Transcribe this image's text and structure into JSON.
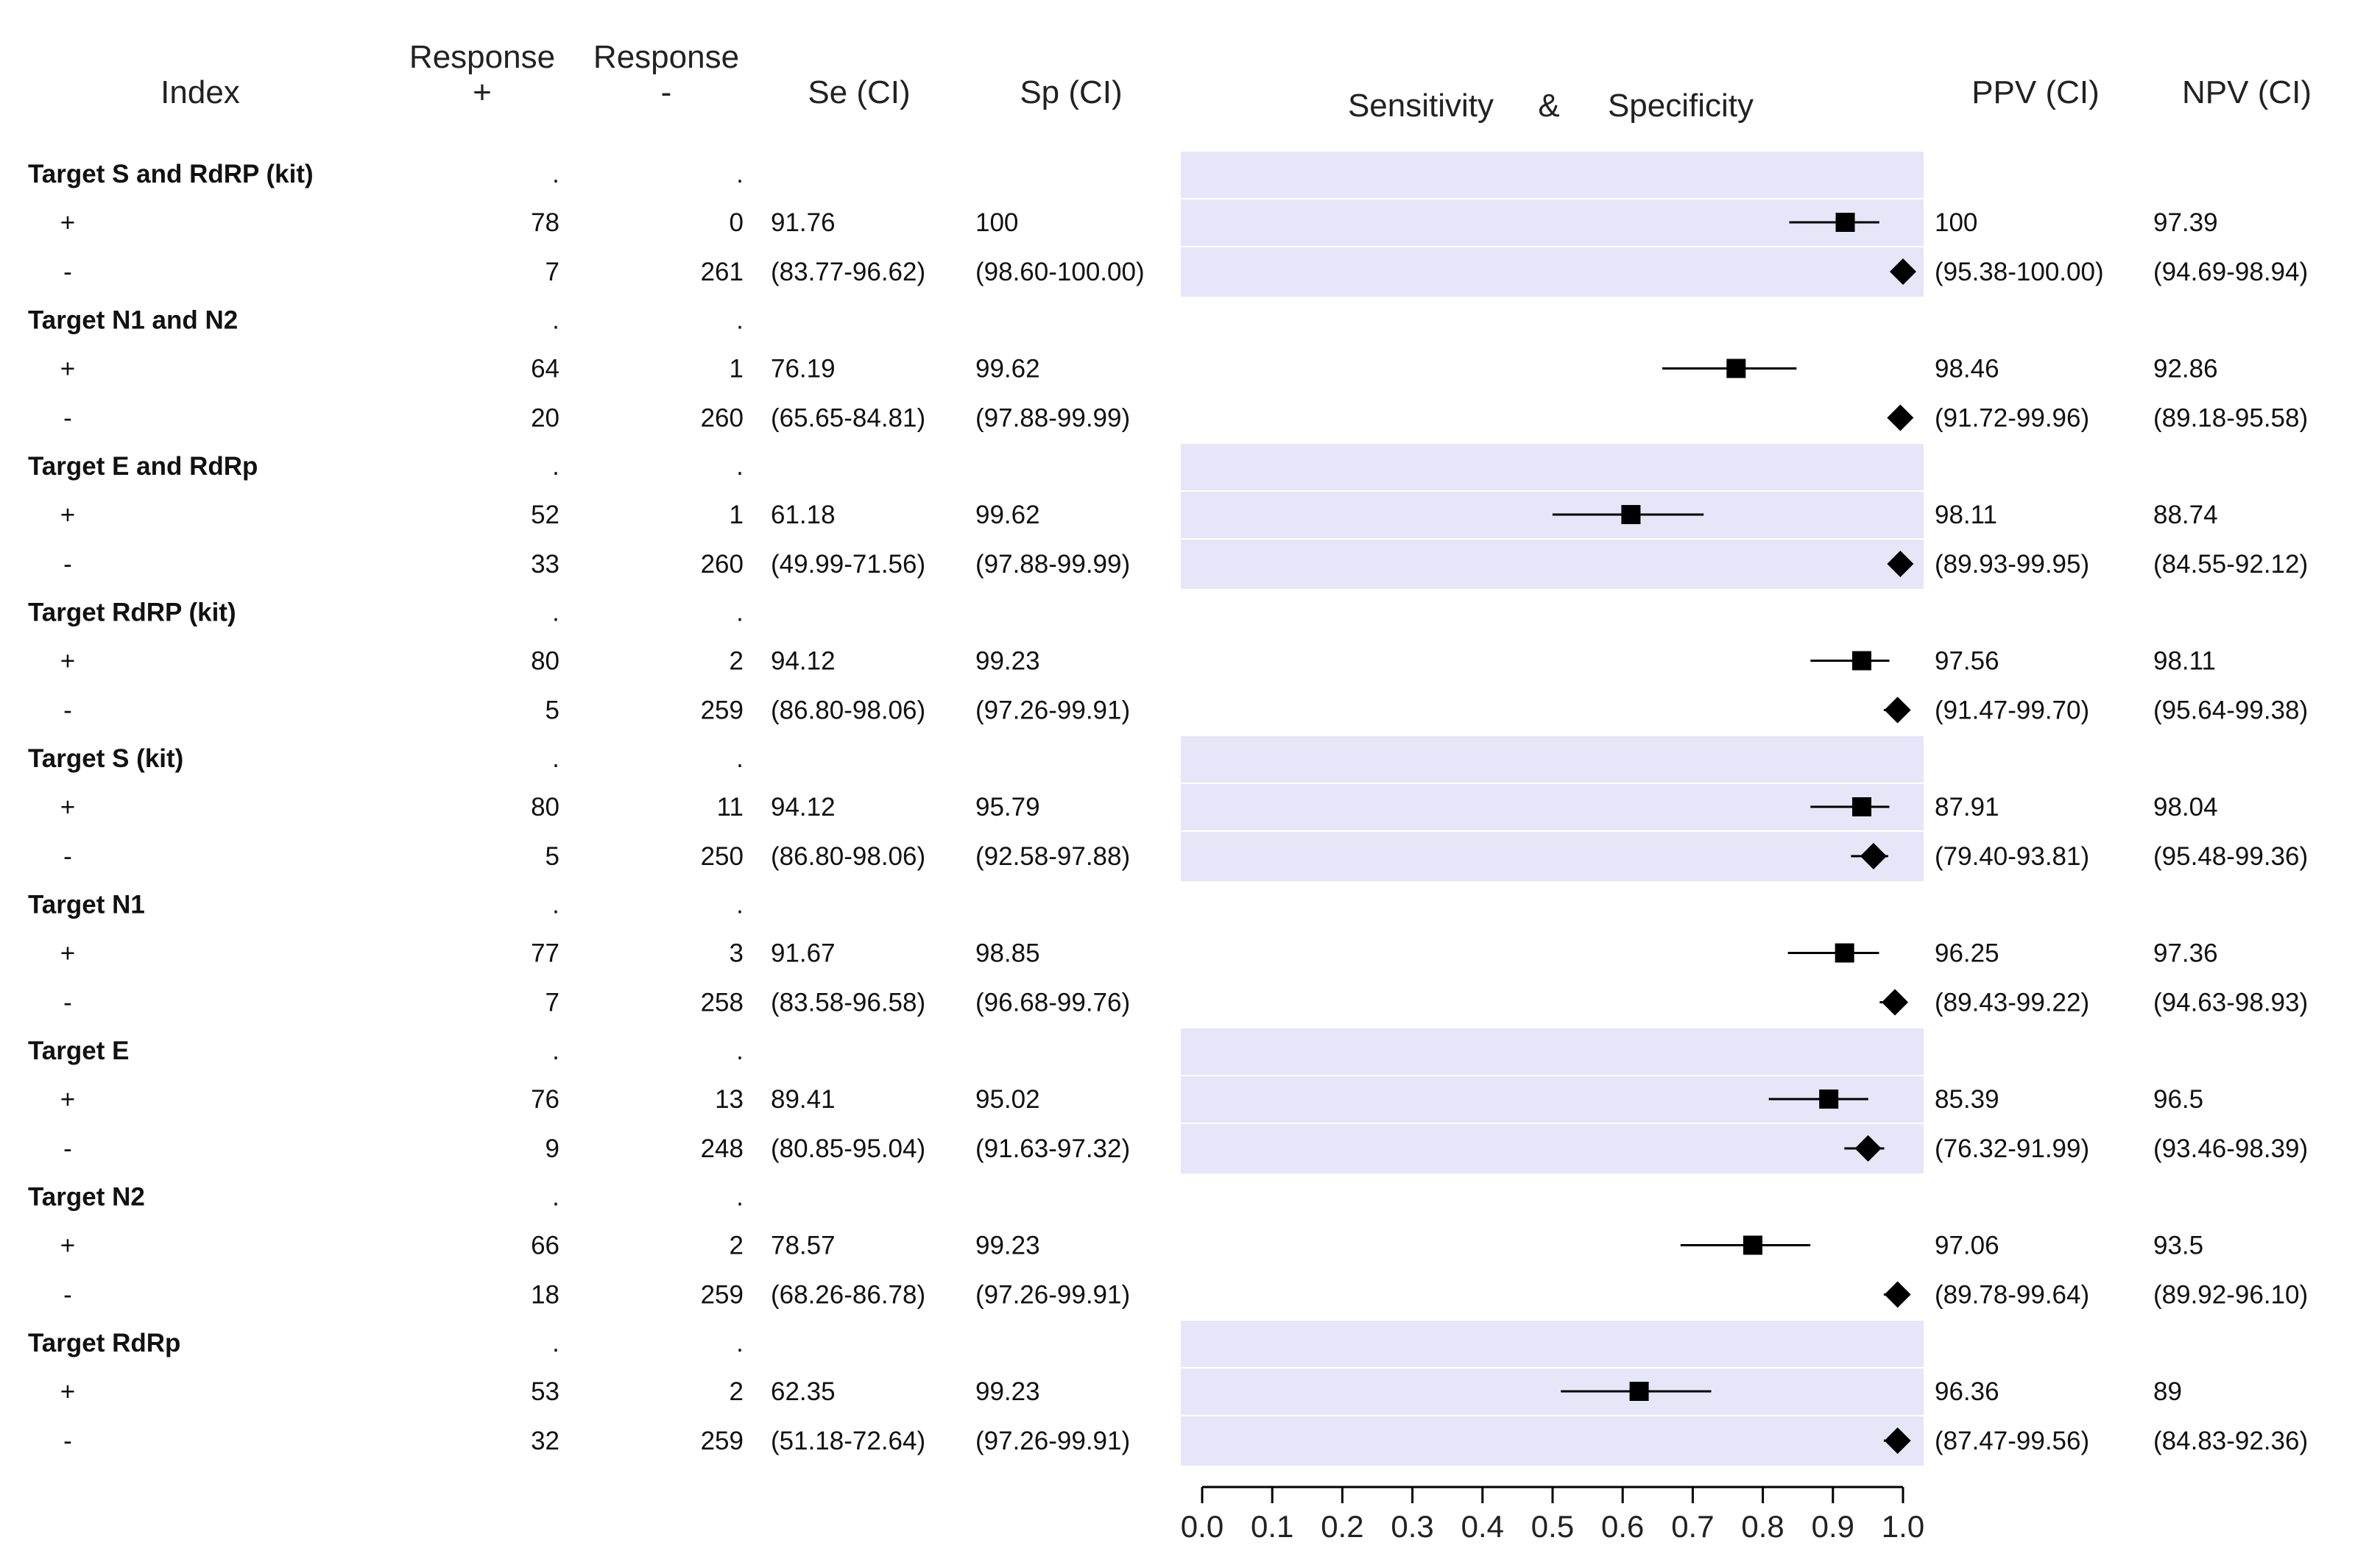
{
  "headers": {
    "index": "Index",
    "resp_pos_l1": "Response",
    "resp_pos_l2": "+",
    "resp_neg_l1": "Response",
    "resp_neg_l2": "-",
    "se": "Se (CI)",
    "sp": "Sp (CI)",
    "plot_title_left": "Sensitivity",
    "plot_title_amp": "&",
    "plot_title_right": "Specificity",
    "ppv": "PPV (CI)",
    "npv": "NPV (CI)"
  },
  "chart_data": {
    "type": "forest",
    "xlim": [
      0.0,
      1.0
    ],
    "ticks": [
      "0.0",
      "0.1",
      "0.2",
      "0.3",
      "0.4",
      "0.5",
      "0.6",
      "0.7",
      "0.8",
      "0.9",
      "1.0"
    ],
    "groups": [
      {
        "name": "Target S and RdRP (kit)",
        "pos": {
          "label": "+",
          "a": "78",
          "b": "0",
          "se": "91.76",
          "sp": "100",
          "ppv": "100",
          "npv": "97.39"
        },
        "neg": {
          "label": "-",
          "a": "7",
          "b": "261",
          "se": "(83.77-96.62)",
          "sp": "(98.60-100.00)",
          "ppv": "(95.38-100.00)",
          "npv": "(94.69-98.94)"
        },
        "sens": 0.9176,
        "sens_lo": 0.8377,
        "sens_hi": 0.9662,
        "spec": 1.0,
        "spec_lo": 0.986,
        "spec_hi": 1.0
      },
      {
        "name": "Target N1 and N2",
        "pos": {
          "label": "+",
          "a": "64",
          "b": "1",
          "se": "76.19",
          "sp": "99.62",
          "ppv": "98.46",
          "npv": "92.86"
        },
        "neg": {
          "label": "-",
          "a": "20",
          "b": "260",
          "se": "(65.65-84.81)",
          "sp": "(97.88-99.99)",
          "ppv": "(91.72-99.96)",
          "npv": "(89.18-95.58)"
        },
        "sens": 0.7619,
        "sens_lo": 0.6565,
        "sens_hi": 0.8481,
        "spec": 0.9962,
        "spec_lo": 0.9788,
        "spec_hi": 0.9999
      },
      {
        "name": "Target E and RdRp",
        "pos": {
          "label": "+",
          "a": "52",
          "b": "1",
          "se": "61.18",
          "sp": "99.62",
          "ppv": "98.11",
          "npv": "88.74"
        },
        "neg": {
          "label": "-",
          "a": "33",
          "b": "260",
          "se": "(49.99-71.56)",
          "sp": "(97.88-99.99)",
          "ppv": "(89.93-99.95)",
          "npv": "(84.55-92.12)"
        },
        "sens": 0.6118,
        "sens_lo": 0.4999,
        "sens_hi": 0.7156,
        "spec": 0.9962,
        "spec_lo": 0.9788,
        "spec_hi": 0.9999
      },
      {
        "name": "Target RdRP (kit)",
        "pos": {
          "label": "+",
          "a": "80",
          "b": "2",
          "se": "94.12",
          "sp": "99.23",
          "ppv": "97.56",
          "npv": "98.11"
        },
        "neg": {
          "label": "-",
          "a": "5",
          "b": "259",
          "se": "(86.80-98.06)",
          "sp": "(97.26-99.91)",
          "ppv": "(91.47-99.70)",
          "npv": "(95.64-99.38)"
        },
        "sens": 0.9412,
        "sens_lo": 0.868,
        "sens_hi": 0.9806,
        "spec": 0.9923,
        "spec_lo": 0.9726,
        "spec_hi": 0.9991
      },
      {
        "name": "Target S (kit)",
        "pos": {
          "label": "+",
          "a": "80",
          "b": "11",
          "se": "94.12",
          "sp": "95.79",
          "ppv": "87.91",
          "npv": "98.04"
        },
        "neg": {
          "label": "-",
          "a": "5",
          "b": "250",
          "se": "(86.80-98.06)",
          "sp": "(92.58-97.88)",
          "ppv": "(79.40-93.81)",
          "npv": "(95.48-99.36)"
        },
        "sens": 0.9412,
        "sens_lo": 0.868,
        "sens_hi": 0.9806,
        "spec": 0.9579,
        "spec_lo": 0.9258,
        "spec_hi": 0.9788
      },
      {
        "name": "Target N1",
        "pos": {
          "label": "+",
          "a": "77",
          "b": "3",
          "se": "91.67",
          "sp": "98.85",
          "ppv": "96.25",
          "npv": "97.36"
        },
        "neg": {
          "label": "-",
          "a": "7",
          "b": "258",
          "se": "(83.58-96.58)",
          "sp": "(96.68-99.76)",
          "ppv": "(89.43-99.22)",
          "npv": "(94.63-98.93)"
        },
        "sens": 0.9167,
        "sens_lo": 0.8358,
        "sens_hi": 0.9658,
        "spec": 0.9885,
        "spec_lo": 0.9668,
        "spec_hi": 0.9976
      },
      {
        "name": "Target E",
        "pos": {
          "label": "+",
          "a": "76",
          "b": "13",
          "se": "89.41",
          "sp": "95.02",
          "ppv": "85.39",
          "npv": "96.5"
        },
        "neg": {
          "label": "-",
          "a": "9",
          "b": "248",
          "se": "(80.85-95.04)",
          "sp": "(91.63-97.32)",
          "ppv": "(76.32-91.99)",
          "npv": "(93.46-98.39)"
        },
        "sens": 0.8941,
        "sens_lo": 0.8085,
        "sens_hi": 0.9504,
        "spec": 0.9502,
        "spec_lo": 0.9163,
        "spec_hi": 0.9732
      },
      {
        "name": "Target N2",
        "pos": {
          "label": "+",
          "a": "66",
          "b": "2",
          "se": "78.57",
          "sp": "99.23",
          "ppv": "97.06",
          "npv": "93.5"
        },
        "neg": {
          "label": "-",
          "a": "18",
          "b": "259",
          "se": "(68.26-86.78)",
          "sp": "(97.26-99.91)",
          "ppv": "(89.78-99.64)",
          "npv": "(89.92-96.10)"
        },
        "sens": 0.7857,
        "sens_lo": 0.6826,
        "sens_hi": 0.8678,
        "spec": 0.9923,
        "spec_lo": 0.9726,
        "spec_hi": 0.9991
      },
      {
        "name": "Target RdRp",
        "pos": {
          "label": "+",
          "a": "53",
          "b": "2",
          "se": "62.35",
          "sp": "99.23",
          "ppv": "96.36",
          "npv": "89"
        },
        "neg": {
          "label": "-",
          "a": "32",
          "b": "259",
          "se": "(51.18-72.64)",
          "sp": "(97.26-99.91)",
          "ppv": "(87.47-99.56)",
          "npv": "(84.83-92.36)"
        },
        "sens": 0.6235,
        "sens_lo": 0.5118,
        "sens_hi": 0.7264,
        "spec": 0.9923,
        "spec_lo": 0.9726,
        "spec_hi": 0.9991
      }
    ]
  }
}
